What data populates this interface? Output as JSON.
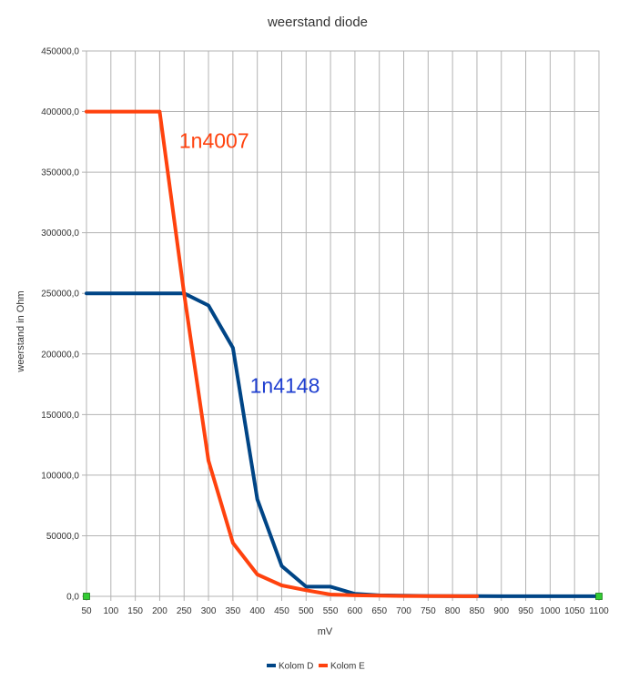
{
  "chart_data": {
    "type": "line",
    "title": "weerstand diode",
    "xlabel": "mV",
    "ylabel": "weerstand in Ohm",
    "x": [
      50,
      100,
      150,
      200,
      250,
      300,
      350,
      400,
      450,
      500,
      550,
      600,
      650,
      700,
      750,
      800,
      850,
      900,
      950,
      1000,
      1050,
      1100
    ],
    "x_ticks": [
      "50",
      "100",
      "150",
      "200",
      "250",
      "300",
      "350",
      "400",
      "450",
      "500",
      "550",
      "600",
      "650",
      "700",
      "750",
      "800",
      "850",
      "900",
      "950",
      "1000",
      "1050",
      "1100"
    ],
    "y_ticks": [
      "0,0",
      "50000,0",
      "100000,0",
      "150000,0",
      "200000,0",
      "250000,0",
      "300000,0",
      "350000,0",
      "400000,0",
      "450000,0"
    ],
    "xlim": [
      50,
      1100
    ],
    "ylim": [
      0,
      450000
    ],
    "grid": true,
    "legend": "bottom",
    "series": [
      {
        "name": "Kolom D",
        "color": "#004586",
        "points": [
          [
            50,
            250000
          ],
          [
            100,
            250000
          ],
          [
            150,
            250000
          ],
          [
            200,
            250000
          ],
          [
            250,
            250000
          ],
          [
            300,
            240000
          ],
          [
            350,
            205000
          ],
          [
            400,
            80000
          ],
          [
            450,
            25000
          ],
          [
            500,
            8000
          ],
          [
            550,
            8000
          ],
          [
            600,
            2000
          ],
          [
            650,
            800
          ],
          [
            700,
            500
          ],
          [
            750,
            300
          ],
          [
            800,
            200
          ],
          [
            850,
            150
          ],
          [
            900,
            100
          ],
          [
            950,
            100
          ],
          [
            1000,
            100
          ],
          [
            1050,
            100
          ],
          [
            1100,
            100
          ]
        ]
      },
      {
        "name": "Kolom E",
        "color": "#ff420e",
        "points": [
          [
            50,
            400000
          ],
          [
            100,
            400000
          ],
          [
            150,
            400000
          ],
          [
            200,
            400000
          ],
          [
            250,
            250000
          ],
          [
            300,
            112000
          ],
          [
            350,
            44000
          ],
          [
            400,
            18000
          ],
          [
            450,
            9000
          ],
          [
            500,
            5000
          ],
          [
            550,
            1500
          ],
          [
            600,
            800
          ],
          [
            650,
            500
          ],
          [
            700,
            300
          ],
          [
            750,
            200
          ],
          [
            800,
            150
          ],
          [
            850,
            100
          ]
        ]
      }
    ],
    "annotations": [
      {
        "text": "1n4007",
        "x": 240,
        "y": 370000,
        "color": "#ff420e"
      },
      {
        "text": "1n4148",
        "x": 385,
        "y": 168000,
        "color": "#1f3fd0"
      }
    ],
    "endpoint_markers": {
      "color": "#33cc33",
      "points": [
        [
          50,
          0
        ],
        [
          1100,
          0
        ]
      ]
    }
  }
}
